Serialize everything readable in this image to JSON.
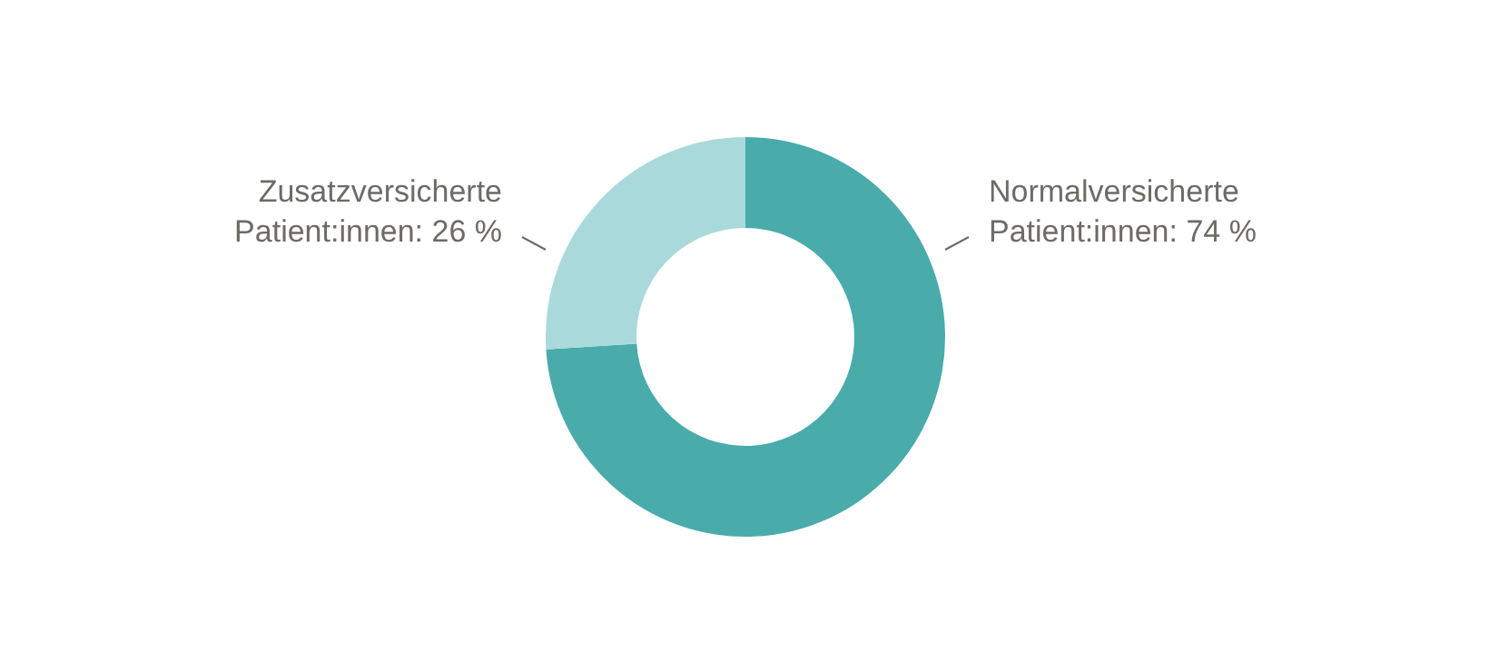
{
  "chart_data": {
    "type": "donut",
    "categories": [
      "Normalversicherte Patient:innen",
      "Zusatzversicherte Patient:innen"
    ],
    "values": [
      74,
      26
    ],
    "colors": [
      "#4aabab",
      "#a9d9db"
    ],
    "value_labels": [
      "74 %",
      "26 %"
    ]
  }
}
